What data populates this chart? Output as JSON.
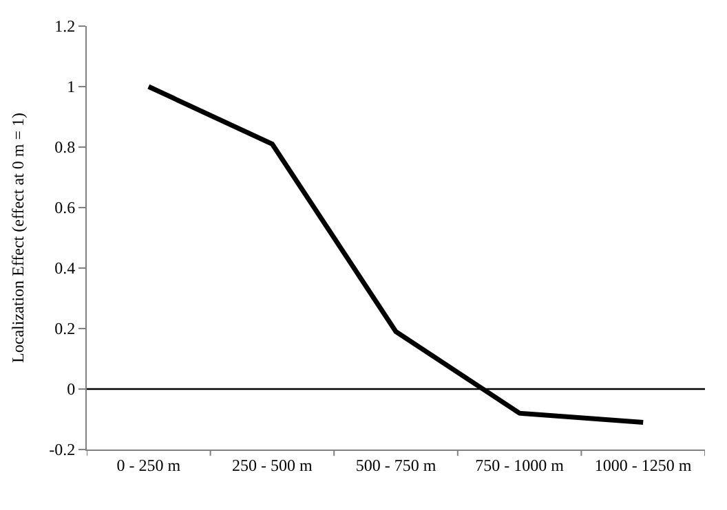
{
  "chart_data": {
    "type": "line",
    "ylabel": "Localization Effect (effect at 0 m = 1)",
    "categories": [
      "0 - 250 m",
      "250 - 500 m",
      "500 - 750 m",
      "750 - 1000 m",
      "1000 - 1250 m"
    ],
    "series": [
      {
        "color": "#000000",
        "values": [
          1.0,
          0.81,
          0.19,
          -0.08,
          -0.11
        ]
      }
    ],
    "ylim": [
      -0.2,
      1.2
    ],
    "yticks": [
      -0.2,
      0,
      0.2,
      0.4,
      0.6,
      0.8,
      1,
      1.2
    ],
    "ref_lines": [
      {
        "axis": "y",
        "value": 0,
        "color": "#000000"
      }
    ],
    "marker": "none",
    "line_style": "solid"
  }
}
